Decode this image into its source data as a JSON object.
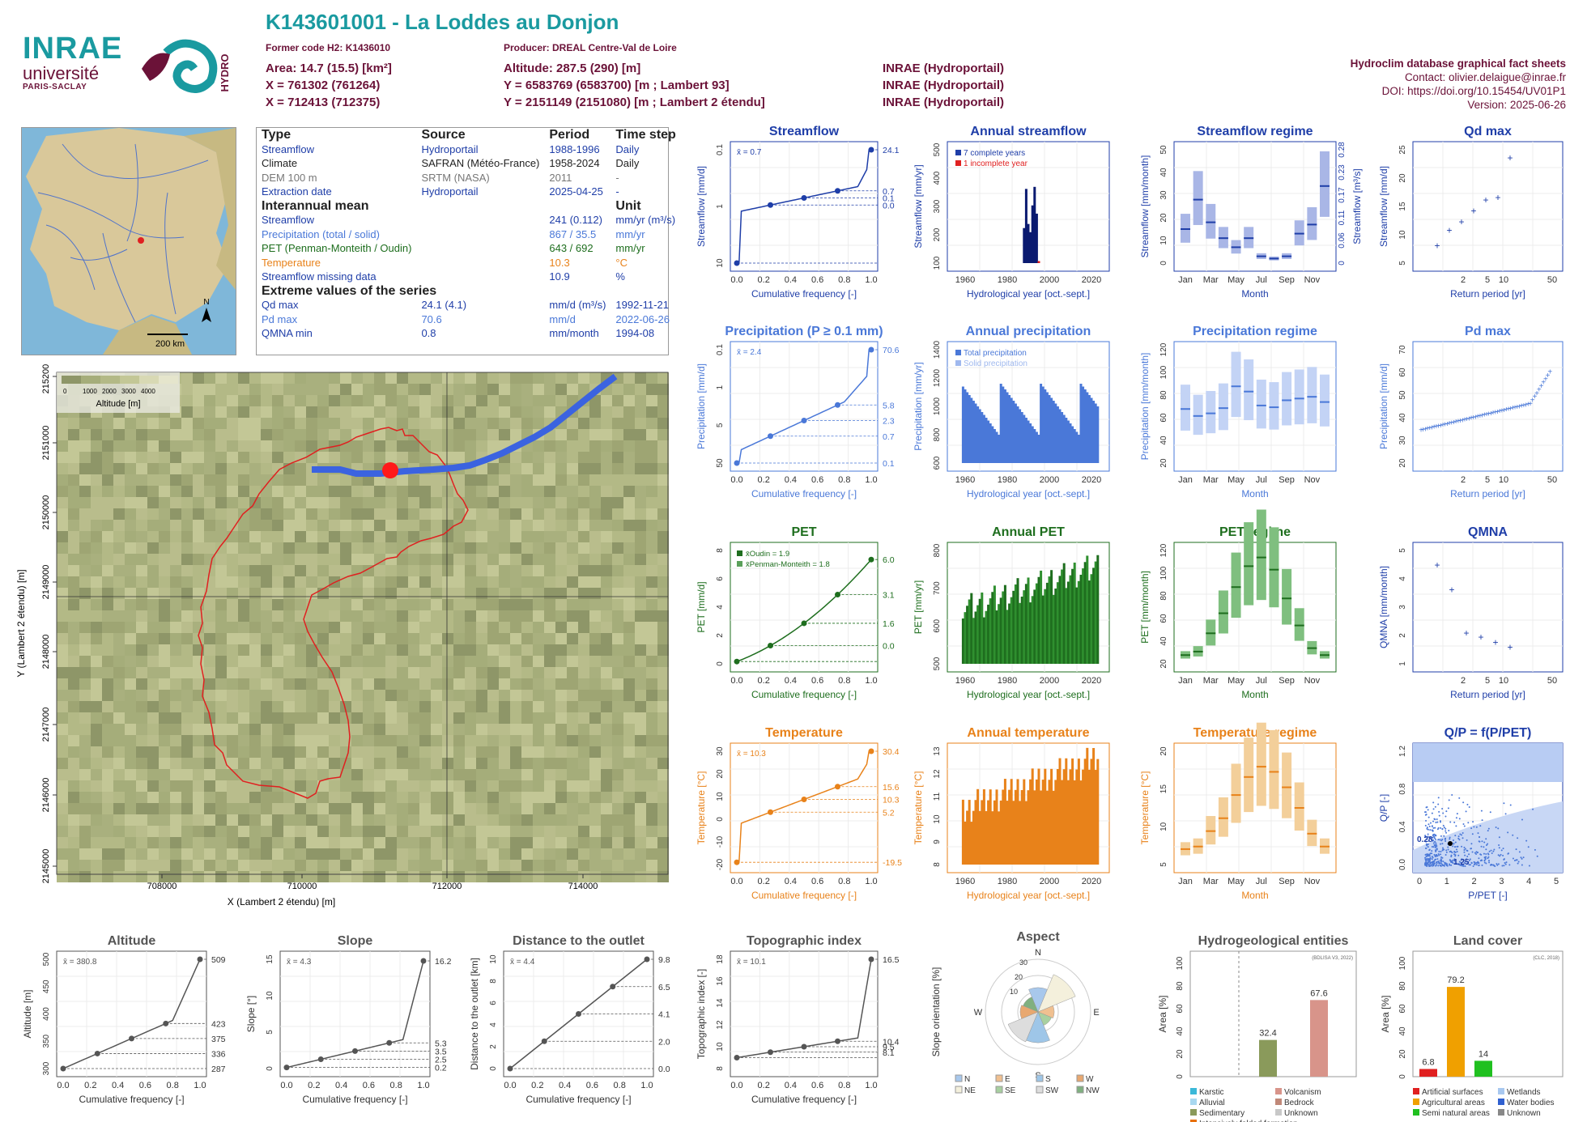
{
  "header": {
    "title": "K143601001 - La Loddes au Donjon",
    "former_code": "Former code H2: K1436010",
    "producer": "Producer: DREAL Centre-Val de Loire",
    "area": "Area: 14.7 (15.5) [km²]",
    "altitude": "Altitude: 287.5 (290) [m]",
    "x93": "X = 761302 (761264)",
    "y93": "Y = 6583769 (6583700) [m ; Lambert 93]",
    "x2e": "X = 712413 (712375)",
    "y2e": "Y = 2151149 (2151080) [m ; Lambert 2 étendu]",
    "src1": "INRAE (Hydroportail)",
    "src2": "INRAE (Hydroportail)",
    "src3": "INRAE (Hydroportail)"
  },
  "logos": {
    "inrae": "INRAE",
    "universite": "université",
    "paris_saclay": "PARIS-SACLAY",
    "hydro": "HYDRO"
  },
  "right_info": {
    "db": "Hydroclim database graphical fact sheets",
    "contact": "Contact: olivier.delaigue@inrae.fr",
    "doi": "DOI: https://doi.org/10.15454/UV01P1",
    "version": "Version: 2025-06-26"
  },
  "locator_map": {
    "scale": "200 km",
    "north": "N"
  },
  "info_table": {
    "h_type": "Type",
    "h_source": "Source",
    "h_period": "Period",
    "h_step": "Time step",
    "rows": [
      {
        "type": "Streamflow",
        "source": "Hydroportail",
        "period": "1988-1996",
        "step": "Daily",
        "color": "#1f3ea8"
      },
      {
        "type": "Climate",
        "source": "SAFRAN (Météo-France)",
        "period": "1958-2024",
        "step": "Daily",
        "color": "#222222"
      },
      {
        "type": "DEM 100 m",
        "source": "SRTM (NASA)",
        "period": "2011",
        "step": "-",
        "color": "#777777"
      },
      {
        "type": "Extraction date",
        "source": "Hydroportail",
        "period": "2025-04-25",
        "step": "-",
        "color": "#1f3ea8"
      }
    ],
    "h_mean": "Interannual mean",
    "h_unit": "Unit",
    "means": [
      {
        "label": "Streamflow",
        "value": "241 (0.112)",
        "unit": "mm/yr (m³/s)",
        "color": "#1f3ea8"
      },
      {
        "label": "Precipitation (total / solid)",
        "value": "867 / 35.5",
        "unit": "mm/yr",
        "color": "#4a78d8"
      },
      {
        "label": "PET (Penman-Monteith / Oudin)",
        "value": "643 / 692",
        "unit": "mm/yr",
        "color": "#1e6e1e"
      },
      {
        "label": "Temperature",
        "value": "10.3",
        "unit": "°C",
        "color": "#e8821a"
      },
      {
        "label": "Streamflow missing data",
        "value": "10.9",
        "unit": "%",
        "color": "#1f3ea8"
      }
    ],
    "h_extreme": "Extreme values of the series",
    "extremes": [
      {
        "label": "Qd max",
        "value": "24.1 (4.1)",
        "unit": "mm/d (m³/s)",
        "date": "1992-11-21",
        "color": "#1f3ea8"
      },
      {
        "label": "Pd max",
        "value": "70.6",
        "unit": "mm/d",
        "date": "2022-06-26",
        "color": "#4a78d8"
      },
      {
        "label": "QMNA min",
        "value": "0.8",
        "unit": "mm/month",
        "date": "1994-08",
        "color": "#1f3ea8"
      }
    ]
  },
  "big_map": {
    "legend_title": "Altitude [m]",
    "legend_ticks": [
      "0",
      "1000",
      "2000",
      "3000",
      "4000"
    ],
    "xlabel": "X (Lambert 2 étendu) [m]",
    "ylabel": "Y (Lambert 2 étendu) [m]",
    "xticks": [
      "708000",
      "710000",
      "712000",
      "714000"
    ],
    "yticks": [
      "2145000",
      "2146000",
      "2147000",
      "2148000",
      "2149000",
      "2150000",
      "2151000",
      "2152000"
    ]
  },
  "colors": {
    "streamflow": "#1f3ea8",
    "precip": "#4a78d8",
    "pet": "#1e6e1e",
    "temp": "#e8821a",
    "grey": "#555555",
    "basin": "#e02020",
    "river": "#3b63e0"
  },
  "chart_data": [
    {
      "id": "streamflow_cdf",
      "type": "line",
      "title": "Streamflow",
      "xlabel": "Cumulative frequency [-]",
      "ylabel": "Streamflow [mm/d]",
      "mean_label": "x̄ = 0.7",
      "right_ticks": [
        "24.1",
        "0.7",
        "0.1",
        "0.0"
      ],
      "left_ticks": [
        "10",
        "1",
        "0.1"
      ],
      "xticks": [
        "0.0",
        "0.2",
        "0.4",
        "0.6",
        "0.8",
        "1.0"
      ],
      "points": [
        [
          0,
          0.0
        ],
        [
          0.25,
          0.1
        ],
        [
          0.5,
          0.28
        ],
        [
          0.75,
          0.7
        ],
        [
          1.0,
          24.1
        ]
      ]
    },
    {
      "id": "annual_streamflow",
      "type": "bar",
      "title": "Annual streamflow",
      "xlabel": "Hydrological year [oct.-sept.]",
      "ylabel": "Streamflow [mm/yr]",
      "legend": [
        "7 complete years",
        "1 incomplete year"
      ],
      "xticks": [
        "1960",
        "1980",
        "2000",
        "2020"
      ],
      "yticks": [
        "100",
        "200",
        "300",
        "400",
        "500"
      ],
      "x": [
        1988,
        1989,
        1990,
        1991,
        1992,
        1993,
        1994,
        1995
      ],
      "values": [
        170,
        360,
        190,
        150,
        280,
        370,
        240,
        10
      ]
    },
    {
      "id": "streamflow_regime",
      "type": "box",
      "title": "Streamflow regime",
      "xlabel": "Month",
      "ylabel": "Streamflow [mm/month]",
      "right_label": "Streamflow [m³/s]",
      "xticks": [
        "Jan",
        "Mar",
        "May",
        "Jul",
        "Sep",
        "Nov"
      ],
      "yticks": [
        "0",
        "10",
        "20",
        "30",
        "40",
        "50"
      ],
      "right_ticks": [
        "0",
        "0.06",
        "0.11",
        "0.17",
        "0.23",
        "0.28"
      ],
      "median": [
        15,
        28,
        18,
        11,
        7,
        11,
        3,
        2,
        3,
        13,
        17,
        34
      ]
    },
    {
      "id": "qd_max",
      "type": "scatter",
      "title": "Qd max",
      "xlabel": "Return period [yr]",
      "ylabel": "Streamflow [mm/d]",
      "xticks": [
        "2",
        "5",
        "10",
        "50"
      ],
      "yticks": [
        "5",
        "10",
        "15",
        "20",
        "25"
      ],
      "values": [
        4,
        7.5,
        9.5,
        12,
        14.5,
        15,
        24.1
      ]
    },
    {
      "id": "precip_cdf",
      "type": "line",
      "title": "Precipitation (P ≥ 0.1 mm)",
      "xlabel": "Cumulative frequency [-]",
      "ylabel": "Precipitation [mm/d]",
      "mean_label": "x̄ = 2.4",
      "right_ticks": [
        "70.6",
        "5.8",
        "2.3",
        "0.7",
        "0.1"
      ],
      "left_ticks": [
        "50",
        "5",
        "1",
        "0.1"
      ],
      "xticks": [
        "0.0",
        "0.2",
        "0.4",
        "0.6",
        "0.8",
        "1.0"
      ],
      "points": [
        [
          0,
          0.1
        ],
        [
          0.25,
          0.7
        ],
        [
          0.5,
          2.3
        ],
        [
          0.75,
          5.8
        ],
        [
          1.0,
          70.6
        ]
      ]
    },
    {
      "id": "annual_precip",
      "type": "bar",
      "title": "Annual precipitation",
      "xlabel": "Hydrological year [oct.-sept.]",
      "ylabel": "Precipitation [mm/yr]",
      "legend": [
        "Total precipitation",
        "Solid precipitation"
      ],
      "xticks": [
        "1960",
        "1980",
        "2000",
        "2020"
      ],
      "yticks": [
        "600",
        "800",
        "1000",
        "1200",
        "1400"
      ]
    },
    {
      "id": "precip_regime",
      "type": "box",
      "title": "Precipitation regime",
      "xlabel": "Month",
      "ylabel": "Precipitation [mm/month]",
      "xticks": [
        "Jan",
        "Mar",
        "May",
        "Jul",
        "Sep",
        "Nov"
      ],
      "yticks": [
        "20",
        "40",
        "60",
        "80",
        "100",
        "120"
      ],
      "median": [
        62,
        54,
        57,
        63,
        88,
        82,
        66,
        64,
        72,
        74,
        76,
        70
      ]
    },
    {
      "id": "pd_max",
      "type": "scatter",
      "title": "Pd max",
      "xlabel": "Return period [yr]",
      "ylabel": "Precipitation [mm/d]",
      "xticks": [
        "2",
        "5",
        "10",
        "50"
      ],
      "yticks": [
        "20",
        "30",
        "40",
        "50",
        "60",
        "70"
      ]
    },
    {
      "id": "pet_cdf",
      "type": "line",
      "title": "PET",
      "xlabel": "Cumulative frequency [-]",
      "ylabel": "PET [mm/d]",
      "legend": [
        "x̄Oudin = 1.9",
        "x̄Penman-Monteith = 1.8"
      ],
      "right_ticks": [
        "6.0",
        "3.1",
        "1.6",
        "0.0"
      ],
      "left_ticks": [
        "0",
        "2",
        "4",
        "6",
        "8"
      ],
      "xticks": [
        "0.0",
        "0.2",
        "0.4",
        "0.6",
        "0.8",
        "1.0"
      ],
      "points": [
        [
          0,
          0.0
        ],
        [
          0.25,
          0.6
        ],
        [
          0.5,
          1.6
        ],
        [
          0.75,
          3.1
        ],
        [
          1.0,
          6.0
        ]
      ]
    },
    {
      "id": "annual_pet",
      "type": "bar",
      "title": "Annual PET",
      "xlabel": "Hydrological year [oct.-sept.]",
      "ylabel": "PET [mm/yr]",
      "xticks": [
        "1960",
        "1980",
        "2000",
        "2020"
      ],
      "yticks": [
        "500",
        "600",
        "700",
        "800"
      ]
    },
    {
      "id": "pet_regime",
      "type": "box",
      "title": "PET regime",
      "xlabel": "Month",
      "ylabel": "PET [mm/month]",
      "xticks": [
        "Jan",
        "Mar",
        "May",
        "Jul",
        "Sep",
        "Nov"
      ],
      "yticks": [
        "20",
        "40",
        "60",
        "80",
        "100",
        "120"
      ],
      "median": [
        10,
        14,
        35,
        58,
        88,
        112,
        122,
        108,
        75,
        44,
        18,
        10
      ]
    },
    {
      "id": "qmna",
      "type": "scatter",
      "title": "QMNA",
      "xlabel": "Return period [yr]",
      "ylabel": "QMNA [mm/month]",
      "xticks": [
        "2",
        "5",
        "10",
        "50"
      ],
      "yticks": [
        "1",
        "2",
        "3",
        "4",
        "5"
      ],
      "values": [
        4.8,
        3.6,
        1.5,
        1.3,
        1.05,
        0.8
      ]
    },
    {
      "id": "temp_cdf",
      "type": "line",
      "title": "Temperature",
      "xlabel": "Cumulative frequency [-]",
      "ylabel": "Temperature [°C]",
      "mean_label": "x̄ = 10.3",
      "right_ticks": [
        "30.4",
        "15.6",
        "10.3",
        "5.2",
        "-19.5"
      ],
      "left_ticks": [
        "-20",
        "-10",
        "0",
        "10",
        "20",
        "30"
      ],
      "xticks": [
        "0.0",
        "0.2",
        "0.4",
        "0.6",
        "0.8",
        "1.0"
      ],
      "points": [
        [
          0,
          -19.5
        ],
        [
          0.25,
          5.2
        ],
        [
          0.5,
          10.3
        ],
        [
          0.75,
          15.6
        ],
        [
          1.0,
          30.4
        ]
      ]
    },
    {
      "id": "annual_temp",
      "type": "bar",
      "title": "Annual temperature",
      "xlabel": "Hydrological year [oct.-sept.]",
      "ylabel": "Temperature [°C]",
      "xticks": [
        "1960",
        "1980",
        "2000",
        "2020"
      ],
      "yticks": [
        "8",
        "9",
        "10",
        "11",
        "12",
        "13"
      ]
    },
    {
      "id": "temp_regime",
      "type": "box",
      "title": "Temperature regime",
      "xlabel": "Month",
      "ylabel": "Temperature [°C]",
      "xticks": [
        "Jan",
        "Mar",
        "May",
        "Jul",
        "Sep",
        "Nov"
      ],
      "yticks": [
        "5",
        "10",
        "15",
        "20"
      ],
      "median": [
        3,
        3.5,
        6.5,
        9,
        13.5,
        17,
        19,
        18,
        15,
        11,
        6,
        3.5
      ]
    },
    {
      "id": "qp_ppet",
      "type": "scatter",
      "title": "Q/P = f(P/PET)",
      "xlabel": "P/PET [-]",
      "ylabel": "Q/P [-]",
      "xticks": [
        "0",
        "1",
        "2",
        "3",
        "4",
        "5"
      ],
      "yticks": [
        "0.0",
        "0.4",
        "0.8",
        "1.2"
      ],
      "marks": [
        "0.28",
        "1.25"
      ]
    },
    {
      "id": "altitude_cdf",
      "type": "line",
      "title": "Altitude",
      "xlabel": "Cumulative frequency [-]",
      "ylabel": "Altitude [m]",
      "mean_label": "x̄ = 380.8",
      "right_ticks": [
        "509",
        "423",
        "375",
        "336",
        "287"
      ],
      "left_ticks": [
        "300",
        "350",
        "400",
        "450",
        "500"
      ],
      "xticks": [
        "0.0",
        "0.2",
        "0.4",
        "0.6",
        "0.8",
        "1.0"
      ]
    },
    {
      "id": "slope_cdf",
      "type": "line",
      "title": "Slope",
      "xlabel": "Cumulative frequency [-]",
      "ylabel": "Slope [°]",
      "mean_label": "x̄ = 4.3",
      "right_ticks": [
        "16.2",
        "5.3",
        "3.5",
        "2.5",
        "0.2"
      ],
      "left_ticks": [
        "0",
        "5",
        "10",
        "15"
      ],
      "xticks": [
        "0.0",
        "0.2",
        "0.4",
        "0.6",
        "0.8",
        "1.0"
      ]
    },
    {
      "id": "distance_cdf",
      "type": "line",
      "title": "Distance to the outlet",
      "xlabel": "Cumulative frequency [-]",
      "ylabel": "Distance to the outlet [km]",
      "mean_label": "x̄ = 4.4",
      "right_ticks": [
        "9.8",
        "6.5",
        "4.1",
        "2.0",
        "0.0"
      ],
      "left_ticks": [
        "0",
        "2",
        "4",
        "6",
        "8",
        "10"
      ],
      "xticks": [
        "0.0",
        "0.2",
        "0.4",
        "0.6",
        "0.8",
        "1.0"
      ]
    },
    {
      "id": "topo_cdf",
      "type": "line",
      "title": "Topographic index",
      "xlabel": "Cumulative frequency [-]",
      "ylabel": "Topographic index [-]",
      "mean_label": "x̄ = 10.1",
      "right_ticks": [
        "16.5",
        "10.4",
        "9.5",
        "8.1"
      ],
      "left_ticks": [
        "8",
        "10",
        "12",
        "14",
        "16",
        "18"
      ],
      "xticks": [
        "0.0",
        "0.2",
        "0.4",
        "0.6",
        "0.8",
        "1.0"
      ]
    },
    {
      "id": "aspect",
      "type": "rose",
      "title": "Aspect",
      "ylabel": "Slope orientation [%]",
      "dirs": [
        "N",
        "E",
        "S",
        "W"
      ],
      "rings": [
        "10",
        "20",
        "30"
      ],
      "legend": [
        "N",
        "E",
        "S",
        "W",
        "NE",
        "SE",
        "SW",
        "NW"
      ]
    },
    {
      "id": "hydrogeol",
      "type": "bar",
      "title": "Hydrogeological entities",
      "ylabel": "Area [%]",
      "source": "(BDLISA V3, 2022)",
      "yticks": [
        "0",
        "20",
        "40",
        "60",
        "80",
        "100"
      ],
      "values": [
        32.4,
        67.6
      ],
      "value_labels": [
        "32.4",
        "67.6"
      ],
      "legend": [
        "Karstic",
        "Volcanism",
        "Alluvial",
        "Bedrock",
        "Sedimentary",
        "Unknown",
        "Intensively folded formation"
      ]
    },
    {
      "id": "landcover",
      "type": "bar",
      "title": "Land cover",
      "ylabel": "Area [%]",
      "source": "(CLC, 2018)",
      "yticks": [
        "0",
        "20",
        "40",
        "60",
        "80",
        "100"
      ],
      "values": [
        6.8,
        79.2,
        14
      ],
      "value_labels": [
        "6.8",
        "79.2",
        "14"
      ],
      "legend": [
        "Artificial surfaces",
        "Wetlands",
        "Agricultural areas",
        "Water bodies",
        "Semi natural areas",
        "Unknown"
      ]
    }
  ]
}
